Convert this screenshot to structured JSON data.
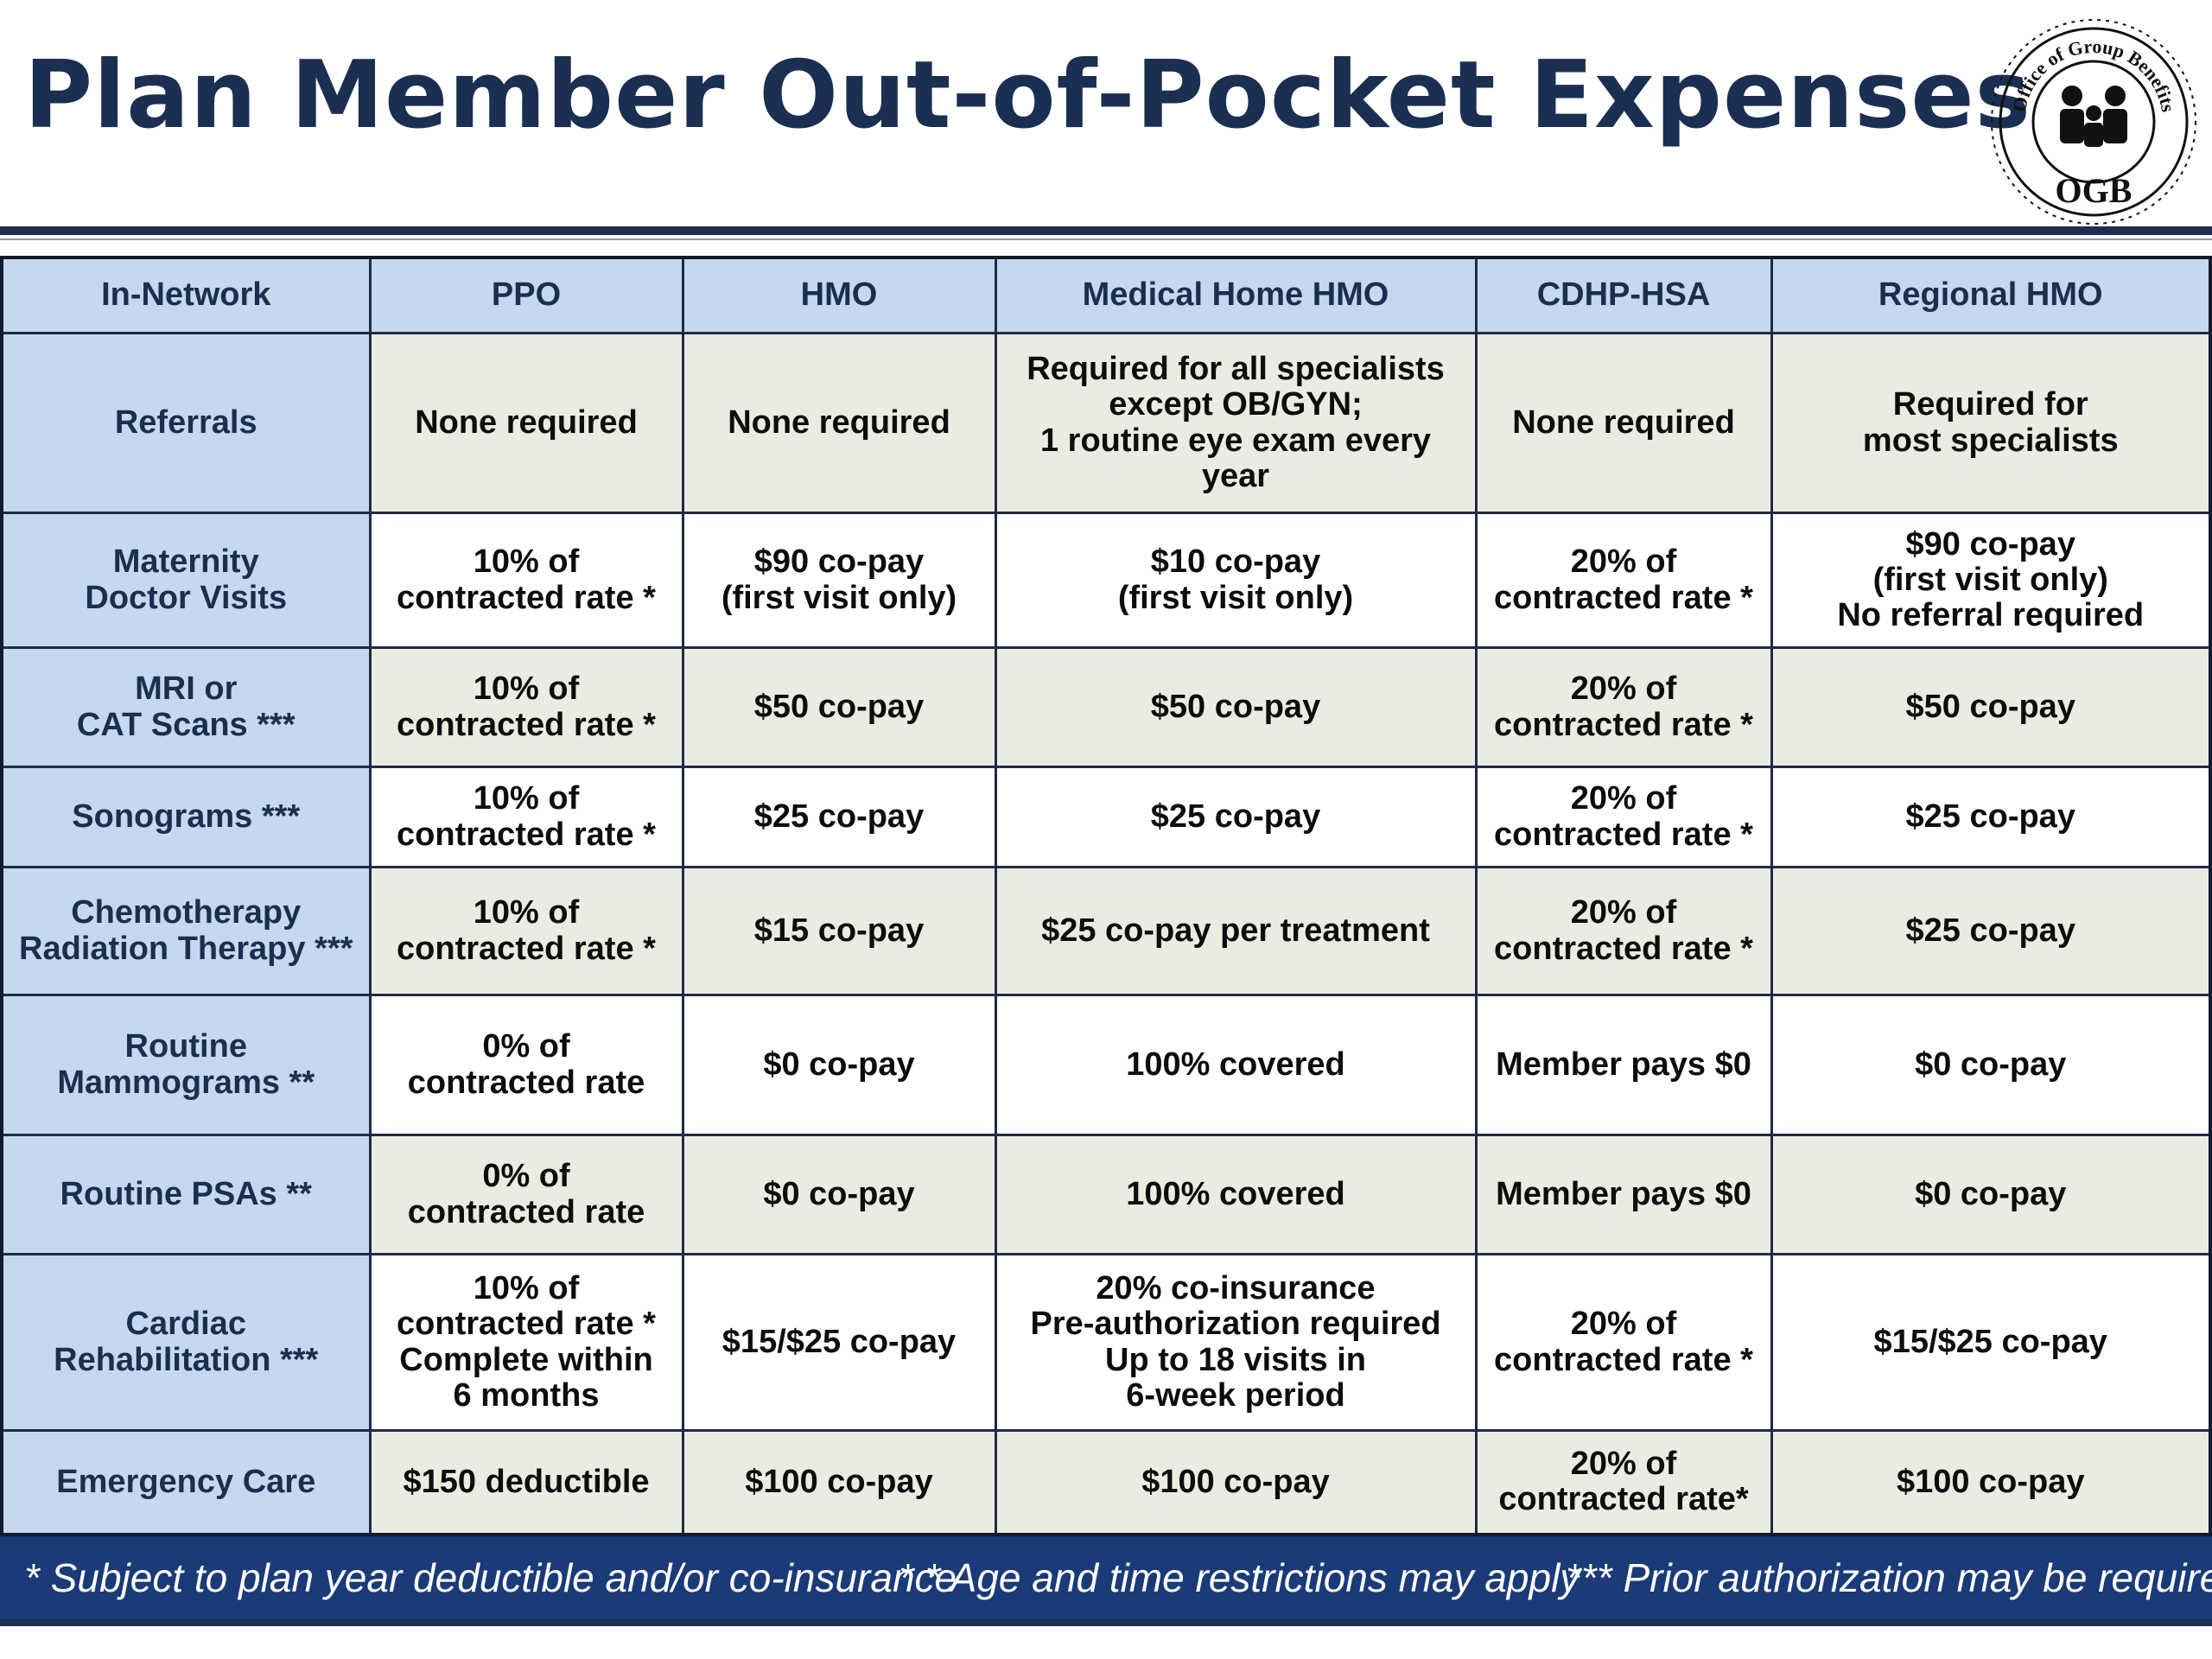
{
  "title": "Plan Member Out-of-Pocket Expenses",
  "logo": {
    "text_arc": "Office of Group Benefits",
    "acronym": "OGB",
    "icon": "family-icon"
  },
  "table": {
    "headers": [
      "In-Network",
      "PPO",
      "HMO",
      "Medical Home HMO",
      "CDHP-HSA",
      "Regional HMO"
    ],
    "rows": [
      {
        "label": "Referrals",
        "cells": [
          "None required",
          "None required",
          "Required for all specialists\nexcept OB/GYN;\n1 routine eye exam every year",
          "None required",
          "Required for\nmost specialists"
        ]
      },
      {
        "label": "Maternity\nDoctor Visits",
        "cells": [
          "10% of\ncontracted rate *",
          "$90 co-pay\n(first visit only)",
          "$10 co-pay\n(first visit only)",
          "20% of\ncontracted rate *",
          "$90 co-pay\n(first visit only)\nNo referral required"
        ]
      },
      {
        "label": "MRI or\nCAT Scans ***",
        "cells": [
          "10% of\ncontracted rate *",
          "$50 co-pay",
          "$50 co-pay",
          "20% of\ncontracted rate *",
          "$50 co-pay"
        ]
      },
      {
        "label": "Sonograms ***",
        "cells": [
          "10% of\ncontracted rate *",
          "$25 co-pay",
          "$25 co-pay",
          "20% of\ncontracted rate *",
          "$25 co-pay"
        ]
      },
      {
        "label": "Chemotherapy\nRadiation Therapy ***",
        "cells": [
          "10% of\ncontracted rate *",
          "$15 co-pay",
          "$25 co-pay per treatment",
          "20% of\ncontracted rate *",
          "$25 co-pay"
        ]
      },
      {
        "label": "Routine\nMammograms **",
        "cells": [
          "0% of\ncontracted rate",
          "$0 co-pay",
          "100% covered",
          "Member pays $0",
          "$0 co-pay"
        ]
      },
      {
        "label": "Routine PSAs **",
        "cells": [
          "0% of\ncontracted rate",
          "$0 co-pay",
          "100% covered",
          "Member pays $0",
          "$0 co-pay"
        ]
      },
      {
        "label": "Cardiac\nRehabilitation ***",
        "cells": [
          "10% of\ncontracted rate *\nComplete within\n6 months",
          "$15/$25 co-pay",
          "20% co-insurance\nPre-authorization required\nUp to 18 visits in\n6-week period",
          "20% of\ncontracted rate *",
          "$15/$25 co-pay"
        ]
      },
      {
        "label": "Emergency Care",
        "cells": [
          "$150 deductible",
          "$100 co-pay",
          "$100 co-pay",
          "20% of\ncontracted rate*",
          "$100 co-pay"
        ]
      }
    ]
  },
  "footnotes": [
    "*  Subject to plan year deductible and/or co-insurance",
    "* *  Age and time restrictions may apply",
    "***  Prior authorization may be required"
  ],
  "colors": {
    "title": "#1a2f52",
    "header_bg": "#c5d8ef",
    "beige_row": "#ecebe2",
    "footer_bg": "#1a3a78"
  }
}
